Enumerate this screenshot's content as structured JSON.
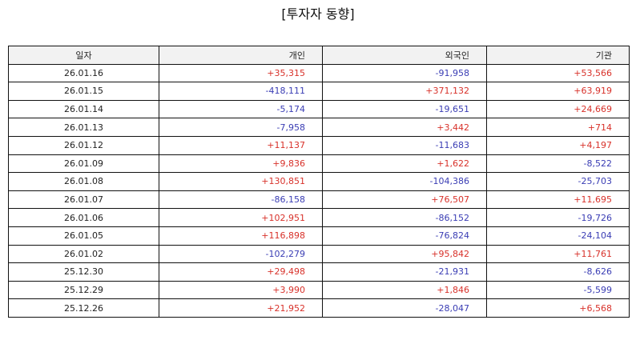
{
  "title": "[투자자 동향]",
  "columns": [
    "일자",
    "개인",
    "외국인",
    "기관"
  ],
  "colors": {
    "positive": "#d8312a",
    "negative": "#3a3db4",
    "header_bg": "#f2f2f2"
  },
  "rows": [
    [
      "26.01.16",
      "+35,315",
      "-91,958",
      "+53,566"
    ],
    [
      "26.01.15",
      "-418,111",
      "+371,132",
      "+63,919"
    ],
    [
      "26.01.14",
      "-5,174",
      "-19,651",
      "+24,669"
    ],
    [
      "26.01.13",
      "-7,958",
      "+3,442",
      "+714"
    ],
    [
      "26.01.12",
      "+11,137",
      "-11,683",
      "+4,197"
    ],
    [
      "26.01.09",
      "+9,836",
      "+1,622",
      "-8,522"
    ],
    [
      "26.01.08",
      "+130,851",
      "-104,386",
      "-25,703"
    ],
    [
      "26.01.07",
      "-86,158",
      "+76,507",
      "+11,695"
    ],
    [
      "26.01.06",
      "+102,951",
      "-86,152",
      "-19,726"
    ],
    [
      "26.01.05",
      "+116,898",
      "-76,824",
      "-24,104"
    ],
    [
      "26.01.02",
      "-102,279",
      "+95,842",
      "+11,761"
    ],
    [
      "25.12.30",
      "+29,498",
      "-21,931",
      "-8,626"
    ],
    [
      "25.12.29",
      "+3,990",
      "+1,846",
      "-5,599"
    ],
    [
      "25.12.26",
      "+21,952",
      "-28,047",
      "+6,568"
    ]
  ]
}
